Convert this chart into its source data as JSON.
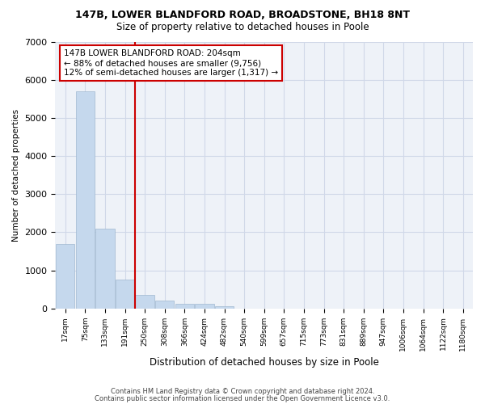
{
  "title1": "147B, LOWER BLANDFORD ROAD, BROADSTONE, BH18 8NT",
  "title2": "Size of property relative to detached houses in Poole",
  "xlabel": "Distribution of detached houses by size in Poole",
  "ylabel": "Number of detached properties",
  "bin_labels": [
    "17sqm",
    "75sqm",
    "133sqm",
    "191sqm",
    "250sqm",
    "308sqm",
    "366sqm",
    "424sqm",
    "482sqm",
    "540sqm",
    "599sqm",
    "657sqm",
    "715sqm",
    "773sqm",
    "831sqm",
    "889sqm",
    "947sqm",
    "1006sqm",
    "1064sqm",
    "1122sqm",
    "1180sqm"
  ],
  "bar_values": [
    1700,
    5700,
    2100,
    750,
    350,
    200,
    130,
    120,
    60,
    0,
    0,
    0,
    0,
    0,
    0,
    0,
    0,
    0,
    0,
    0,
    0
  ],
  "bar_color": "#c5d8ed",
  "bar_edge_color": "#a0b8d0",
  "vline_color": "#cc0000",
  "annotation_text": "147B LOWER BLANDFORD ROAD: 204sqm\n← 88% of detached houses are smaller (9,756)\n12% of semi-detached houses are larger (1,317) →",
  "annotation_box_color": "white",
  "annotation_box_edge": "#cc0000",
  "ylim": [
    0,
    7000
  ],
  "yticks": [
    0,
    1000,
    2000,
    3000,
    4000,
    5000,
    6000,
    7000
  ],
  "grid_color": "#d0d8e8",
  "footer1": "Contains HM Land Registry data © Crown copyright and database right 2024.",
  "footer2": "Contains public sector information licensed under the Open Government Licence v3.0.",
  "bg_color": "#eef2f8"
}
